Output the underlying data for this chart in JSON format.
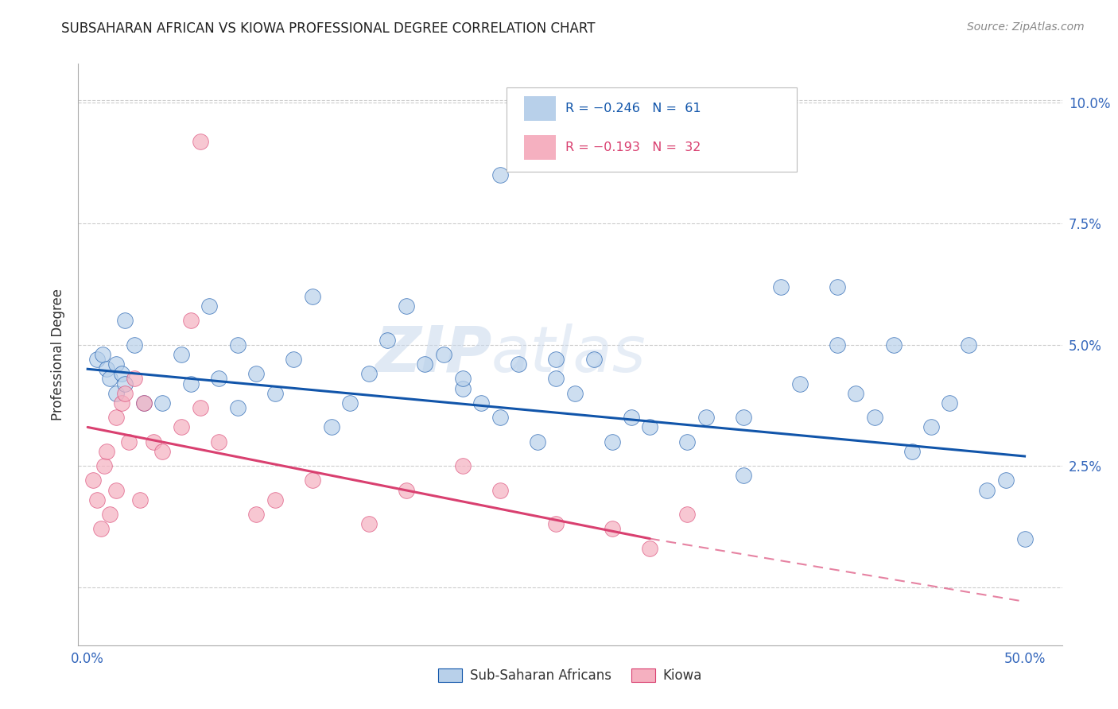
{
  "title": "SUBSAHARAN AFRICAN VS KIOWA PROFESSIONAL DEGREE CORRELATION CHART",
  "source": "Source: ZipAtlas.com",
  "ylabel": "Professional Degree",
  "ytick_values": [
    0.0,
    0.025,
    0.05,
    0.075,
    0.1
  ],
  "ytick_labels": [
    "",
    "2.5%",
    "5.0%",
    "7.5%",
    "10.0%"
  ],
  "xtick_values": [
    0.0,
    0.1,
    0.2,
    0.3,
    0.4,
    0.5
  ],
  "xtick_labels": [
    "0.0%",
    "",
    "",
    "",
    "",
    "50.0%"
  ],
  "xlim": [
    -0.005,
    0.52
  ],
  "ylim": [
    -0.012,
    0.108
  ],
  "legend_label1": "Sub-Saharan Africans",
  "legend_label2": "Kiowa",
  "legend_r1": "R = −0.246",
  "legend_n1": "N =  61",
  "legend_r2": "R = −0.193",
  "legend_n2": "N =  32",
  "color_blue": "#b8d0ea",
  "color_pink": "#f5b0c0",
  "line_blue": "#1155aa",
  "line_pink": "#d94070",
  "background": "#ffffff",
  "watermark_zip": "ZIP",
  "watermark_atlas": "atlas",
  "blue_scatter_x": [
    0.005,
    0.008,
    0.01,
    0.012,
    0.015,
    0.015,
    0.018,
    0.02,
    0.02,
    0.025,
    0.03,
    0.04,
    0.05,
    0.055,
    0.065,
    0.07,
    0.08,
    0.08,
    0.09,
    0.1,
    0.11,
    0.12,
    0.13,
    0.14,
    0.15,
    0.16,
    0.17,
    0.18,
    0.19,
    0.2,
    0.2,
    0.21,
    0.22,
    0.23,
    0.24,
    0.25,
    0.25,
    0.26,
    0.27,
    0.28,
    0.29,
    0.3,
    0.32,
    0.33,
    0.35,
    0.35,
    0.37,
    0.38,
    0.4,
    0.4,
    0.41,
    0.42,
    0.43,
    0.44,
    0.45,
    0.46,
    0.47,
    0.48,
    0.49,
    0.5,
    0.22
  ],
  "blue_scatter_y": [
    0.047,
    0.048,
    0.045,
    0.043,
    0.046,
    0.04,
    0.044,
    0.042,
    0.055,
    0.05,
    0.038,
    0.038,
    0.048,
    0.042,
    0.058,
    0.043,
    0.05,
    0.037,
    0.044,
    0.04,
    0.047,
    0.06,
    0.033,
    0.038,
    0.044,
    0.051,
    0.058,
    0.046,
    0.048,
    0.041,
    0.043,
    0.038,
    0.035,
    0.046,
    0.03,
    0.043,
    0.047,
    0.04,
    0.047,
    0.03,
    0.035,
    0.033,
    0.03,
    0.035,
    0.035,
    0.023,
    0.062,
    0.042,
    0.062,
    0.05,
    0.04,
    0.035,
    0.05,
    0.028,
    0.033,
    0.038,
    0.05,
    0.02,
    0.022,
    0.01,
    0.085
  ],
  "pink_scatter_x": [
    0.003,
    0.005,
    0.007,
    0.009,
    0.01,
    0.012,
    0.015,
    0.015,
    0.018,
    0.02,
    0.022,
    0.025,
    0.028,
    0.03,
    0.035,
    0.04,
    0.05,
    0.055,
    0.06,
    0.07,
    0.09,
    0.1,
    0.12,
    0.15,
    0.17,
    0.2,
    0.22,
    0.25,
    0.28,
    0.3,
    0.32,
    0.06
  ],
  "pink_scatter_y": [
    0.022,
    0.018,
    0.012,
    0.025,
    0.028,
    0.015,
    0.035,
    0.02,
    0.038,
    0.04,
    0.03,
    0.043,
    0.018,
    0.038,
    0.03,
    0.028,
    0.033,
    0.055,
    0.037,
    0.03,
    0.015,
    0.018,
    0.022,
    0.013,
    0.02,
    0.025,
    0.02,
    0.013,
    0.012,
    0.008,
    0.015,
    0.092
  ],
  "blue_line_x0": 0.0,
  "blue_line_x1": 0.5,
  "blue_line_y0": 0.045,
  "blue_line_y1": 0.027,
  "pink_line_x0": 0.0,
  "pink_line_x1_solid": 0.3,
  "pink_line_x1_dash": 0.5,
  "pink_line_y0": 0.033,
  "pink_line_y1_solid": 0.01,
  "pink_line_y1_dash": -0.003
}
